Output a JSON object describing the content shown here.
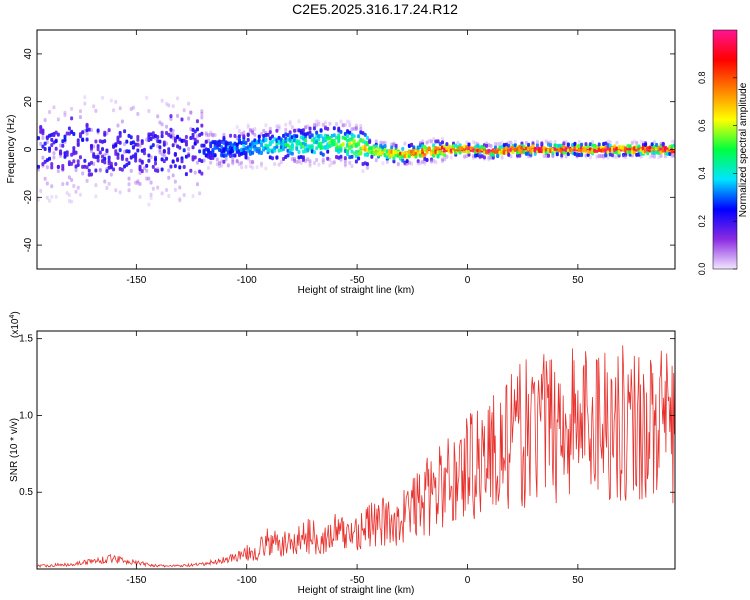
{
  "title": "C2E5.2025.316.17.24.R12",
  "chart_data": [
    {
      "type": "heatmap",
      "xlabel": "Height of straight line (km)",
      "ylabel": "Frequency (Hz)",
      "xlim": [
        -195,
        94
      ],
      "ylim": [
        -50,
        50
      ],
      "xticks": [
        -150,
        -100,
        -50,
        0,
        50
      ],
      "yticks": [
        -40,
        -20,
        0,
        20,
        40
      ],
      "colorbar": {
        "label": "Normalized spectral amplitude",
        "range": [
          0,
          1
        ],
        "ticks": [
          "0.0",
          "0.2",
          "0.4",
          "0.6",
          "0.8"
        ],
        "colors": [
          "#f2e6ff",
          "#8a2be2",
          "#0000ff",
          "#00e5ff",
          "#00ff40",
          "#ffff00",
          "#ff8000",
          "#ff0000",
          "#ff1493"
        ]
      },
      "ridge": {
        "x": [
          -195,
          -120,
          -100,
          -80,
          -60,
          -50,
          -40,
          -30,
          -20,
          -10,
          0,
          10,
          20,
          40,
          60,
          80,
          94
        ],
        "freq": [
          0,
          0,
          1,
          2,
          3,
          1,
          -1,
          -2,
          -1,
          0,
          0,
          -1,
          0,
          0,
          0,
          0,
          0
        ],
        "amplitude": [
          0.25,
          0.28,
          0.35,
          0.45,
          0.5,
          0.6,
          0.65,
          0.72,
          0.78,
          0.85,
          0.9,
          0.9,
          0.92,
          0.93,
          0.93,
          0.92,
          0.9
        ]
      }
    },
    {
      "type": "line",
      "xlabel": "Height of straight line (km)",
      "ylabel": "SNR (10 * v/v)",
      "y_multiplier": "(x10",
      "y_multiplier_exp": "4",
      "y_multiplier_close": ")",
      "xlim": [
        -195,
        94
      ],
      "ylim": [
        0,
        1.55
      ],
      "xticks": [
        -150,
        -100,
        -50,
        0,
        50
      ],
      "yticks": [
        "0.5",
        "1.0",
        "1.5"
      ],
      "ytick_values": [
        0.5,
        1.0,
        1.5
      ],
      "color": "#e8302c",
      "series": [
        {
          "x": [
            -195,
            -180,
            -170,
            -160,
            -150,
            -140,
            -130,
            -120,
            -110,
            -100,
            -95,
            -90,
            -85,
            -80,
            -75,
            -70,
            -65,
            -60,
            -55,
            -50,
            -45,
            -40,
            -35,
            -30,
            -25,
            -20,
            -15,
            -10,
            -5,
            0,
            5,
            10,
            15,
            20,
            25,
            30,
            35,
            40,
            45,
            50,
            55,
            60,
            65,
            70,
            75,
            80,
            85,
            90,
            94
          ],
          "values": [
            0.02,
            0.03,
            0.05,
            0.07,
            0.04,
            0.02,
            0.02,
            0.03,
            0.06,
            0.1,
            0.12,
            0.18,
            0.15,
            0.17,
            0.2,
            0.22,
            0.18,
            0.24,
            0.22,
            0.25,
            0.28,
            0.3,
            0.3,
            0.33,
            0.4,
            0.45,
            0.5,
            0.55,
            0.6,
            0.68,
            0.72,
            0.75,
            0.78,
            0.82,
            0.88,
            0.9,
            0.92,
            0.95,
            0.95,
            0.97,
            0.96,
            1.0,
            0.97,
            0.95,
            0.96,
            0.94,
            0.93,
            0.92,
            0.92
          ]
        }
      ]
    }
  ]
}
